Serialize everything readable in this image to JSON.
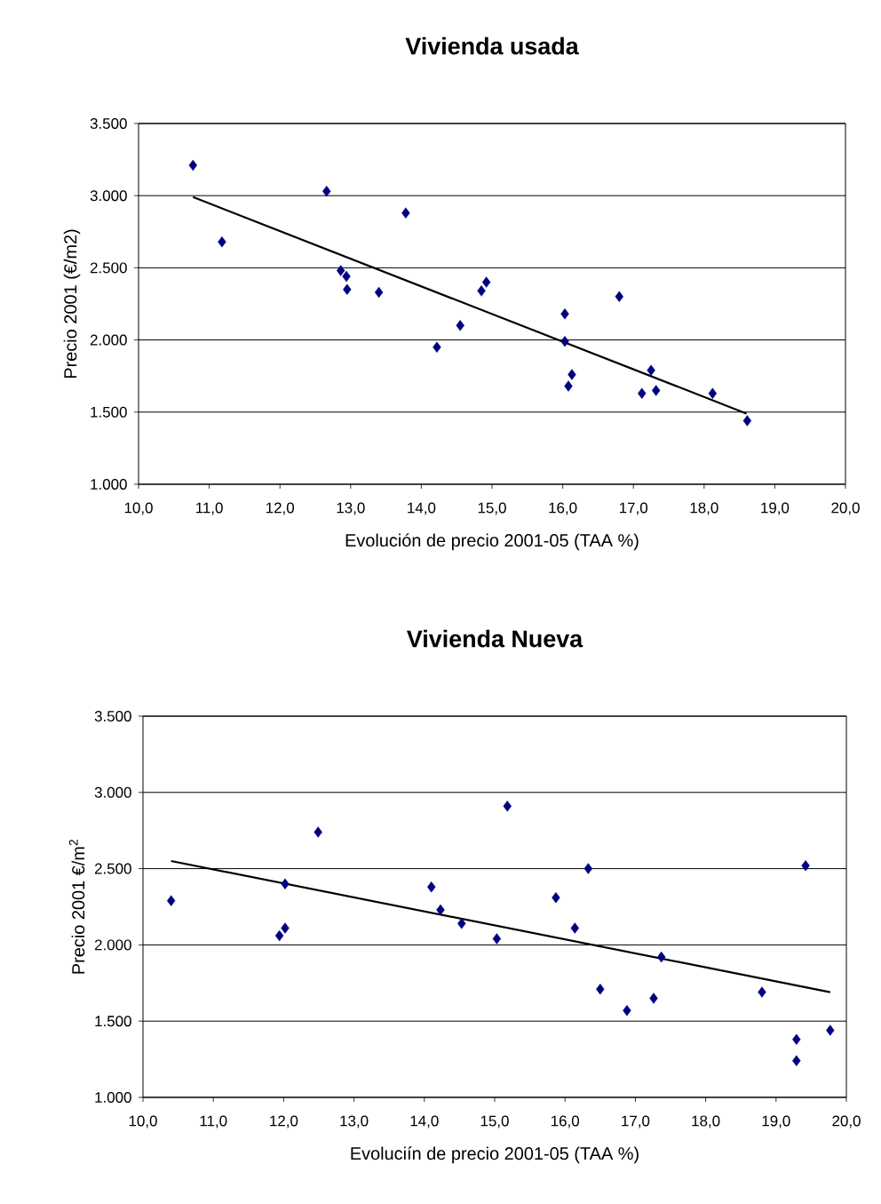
{
  "chart_data": [
    {
      "type": "scatter",
      "title": "Vivienda usada",
      "xlabel": "Evolución de precio 2001-05 (TAA %)",
      "ylabel": "Precio 2001 (€/m2)",
      "xlim": [
        10,
        20
      ],
      "ylim": [
        1000,
        3500
      ],
      "xticks": [
        {
          "value": 10,
          "label": "10,0"
        },
        {
          "value": 11,
          "label": "11,0"
        },
        {
          "value": 12,
          "label": "12,0"
        },
        {
          "value": 13,
          "label": "13,0"
        },
        {
          "value": 14,
          "label": "14,0"
        },
        {
          "value": 15,
          "label": "15,0"
        },
        {
          "value": 16,
          "label": "16,0"
        },
        {
          "value": 17,
          "label": "17,0"
        },
        {
          "value": 18,
          "label": "18,0"
        },
        {
          "value": 19,
          "label": "19,0"
        },
        {
          "value": 20,
          "label": "20,0"
        }
      ],
      "yticks": [
        {
          "value": 1000,
          "label": "1.000"
        },
        {
          "value": 1500,
          "label": "1.500"
        },
        {
          "value": 2000,
          "label": "2.000"
        },
        {
          "value": 2500,
          "label": "2.500"
        },
        {
          "value": 3000,
          "label": "3.000"
        },
        {
          "value": 3500,
          "label": "3.500"
        }
      ],
      "grid": "y",
      "marker": "diamond",
      "series": [
        {
          "color": "#000080",
          "x": [
            10.77,
            11.18,
            12.66,
            12.86,
            12.94,
            12.95,
            13.4,
            13.78,
            14.22,
            14.55,
            14.85,
            14.92,
            16.03,
            16.03,
            16.08,
            16.13,
            16.8,
            17.12,
            17.25,
            17.32,
            18.12,
            18.61
          ],
          "values": [
            3210,
            2680,
            3030,
            2480,
            2440,
            2350,
            2330,
            2880,
            1950,
            2100,
            2340,
            2400,
            2180,
            1990,
            1680,
            1760,
            2300,
            1630,
            1790,
            1650,
            1630,
            1440
          ]
        },
        {
          "type": "line",
          "marker": "none",
          "color": "#000000",
          "x": [
            10.77,
            18.6
          ],
          "values": [
            2990,
            1490
          ]
        }
      ]
    },
    {
      "type": "scatter",
      "title": "Vivienda Nueva",
      "xlabel": "Evoluciín de precio 2001-05 (TAA %)",
      "ylabel": "Precio 2001 €/m$^{2}$",
      "xlim": [
        10,
        20
      ],
      "ylim": [
        1000,
        3500
      ],
      "xticks": [
        {
          "value": 10,
          "label": "10,0"
        },
        {
          "value": 11,
          "label": "11,0"
        },
        {
          "value": 12,
          "label": "12,0"
        },
        {
          "value": 13,
          "label": "13,0"
        },
        {
          "value": 14,
          "label": "14,0"
        },
        {
          "value": 15,
          "label": "15,0"
        },
        {
          "value": 16,
          "label": "16,0"
        },
        {
          "value": 17,
          "label": "17,0"
        },
        {
          "value": 18,
          "label": "18,0"
        },
        {
          "value": 19,
          "label": "19,0"
        },
        {
          "value": 20,
          "label": "20,0"
        }
      ],
      "yticks": [
        {
          "value": 1000,
          "label": "1.000"
        },
        {
          "value": 1500,
          "label": "1.500"
        },
        {
          "value": 2000,
          "label": "2.000"
        },
        {
          "value": 2500,
          "label": "2.500"
        },
        {
          "value": 3000,
          "label": "3.000"
        },
        {
          "value": 3500,
          "label": "3.500"
        }
      ],
      "grid": "y",
      "marker": "diamond",
      "series": [
        {
          "color": "#000080",
          "x": [
            10.4,
            12.02,
            11.94,
            12.02,
            12.49,
            14.1,
            14.23,
            14.53,
            15.03,
            15.18,
            15.87,
            16.14,
            16.33,
            16.5,
            16.88,
            17.26,
            17.37,
            18.8,
            19.29,
            19.29,
            19.42,
            19.77
          ],
          "values": [
            2290,
            2400,
            2060,
            2110,
            2740,
            2380,
            2230,
            2140,
            2040,
            2910,
            2310,
            2110,
            2500,
            1710,
            1570,
            1650,
            1920,
            1690,
            1380,
            1240,
            2520,
            1440
          ]
        },
        {
          "type": "line",
          "marker": "none",
          "color": "#000000",
          "x": [
            10.4,
            19.77
          ],
          "values": [
            2550,
            1690
          ]
        }
      ]
    }
  ]
}
